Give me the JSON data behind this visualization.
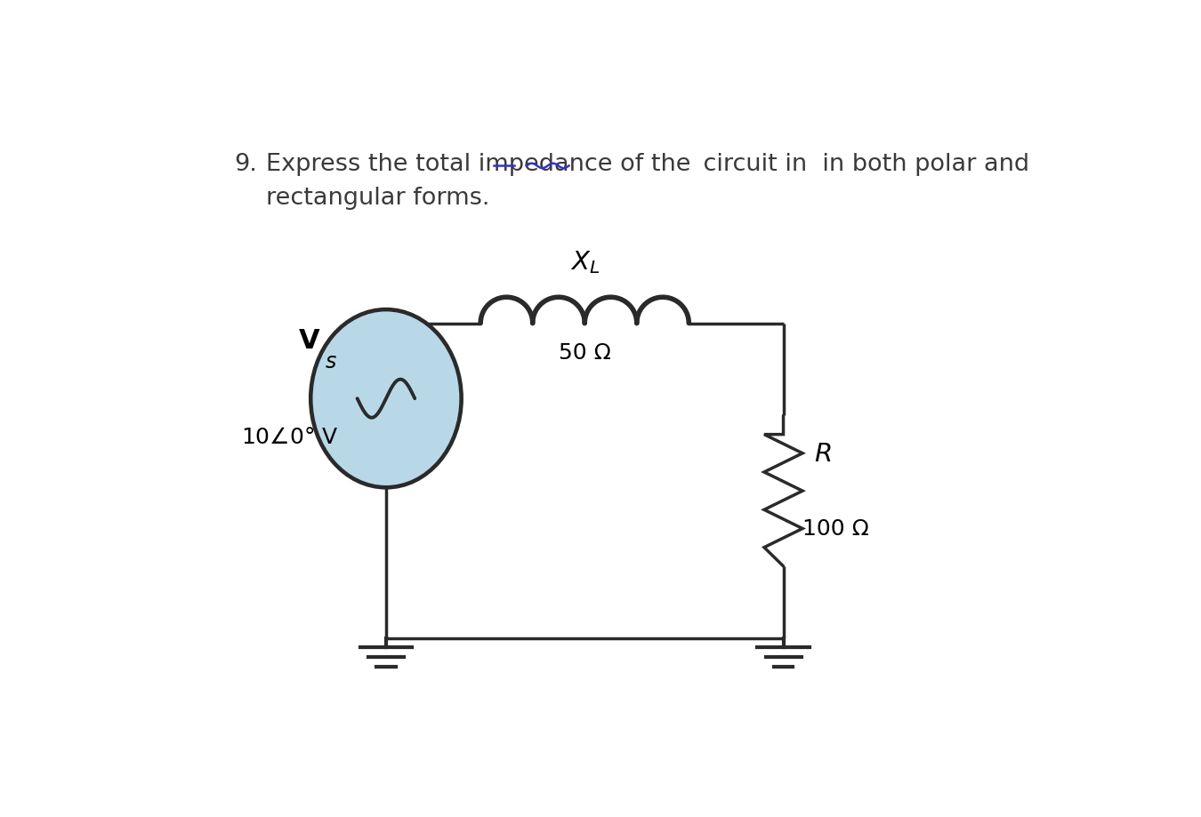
{
  "background_color": "#ffffff",
  "circuit": {
    "vs_value": "10∠0° V",
    "xl_value": "50 Ω",
    "r_value": "100 Ω",
    "wire_color": "#2a2a2a",
    "source_fill": "#b8d8e8",
    "source_border": "#2a2a2a",
    "ground_color": "#2a2a2a"
  },
  "figsize": [
    13.5,
    9.2
  ],
  "dpi": 100
}
